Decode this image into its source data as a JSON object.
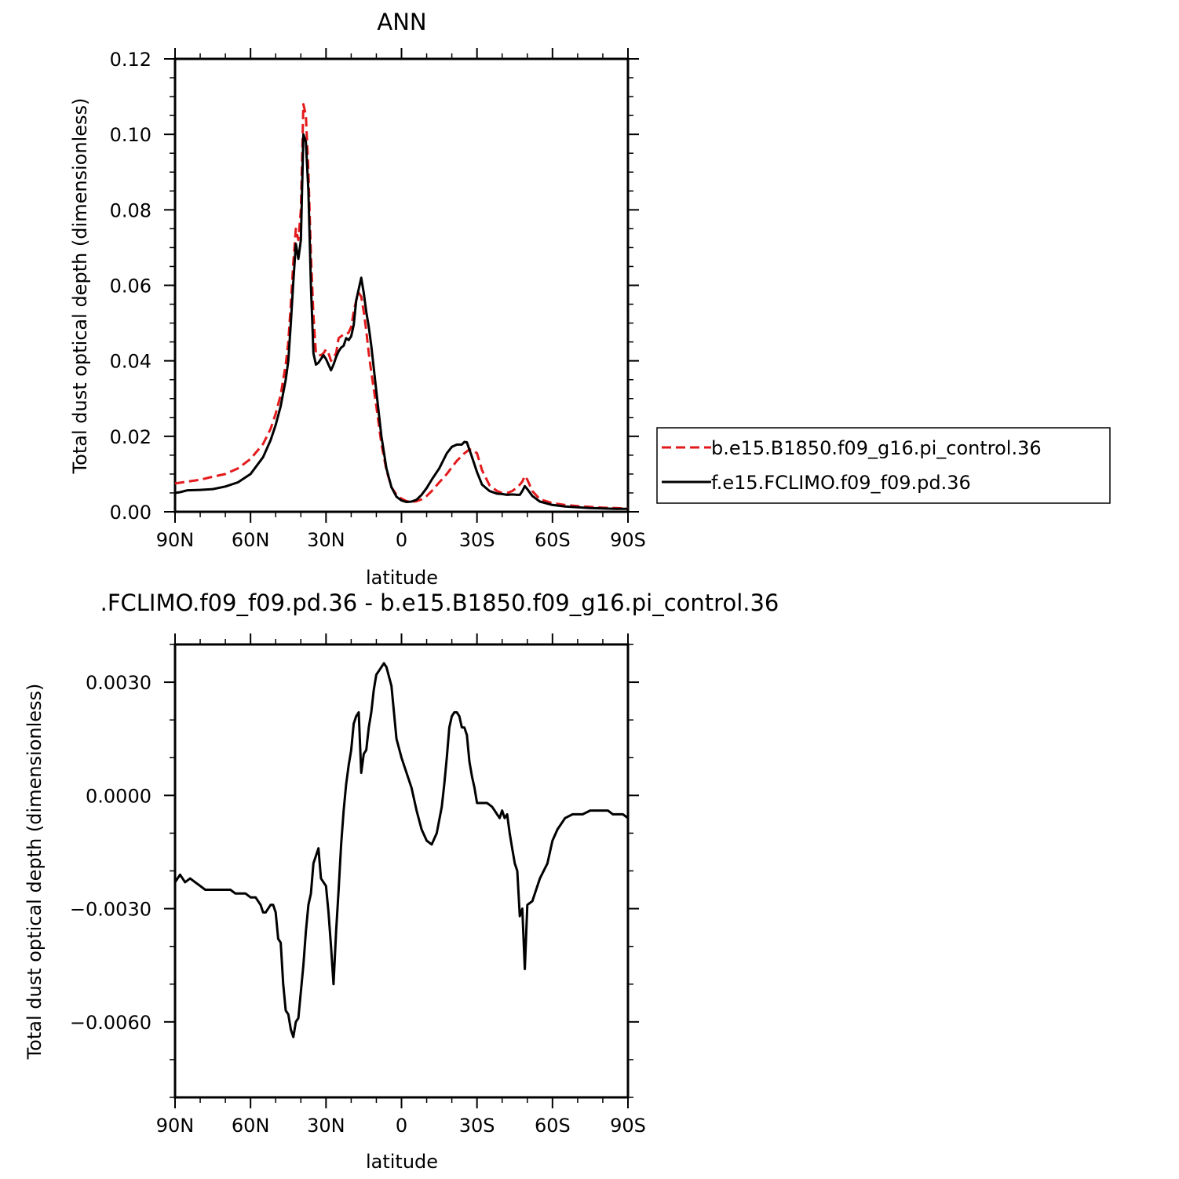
{
  "chart_data": [
    {
      "type": "line",
      "title": "ANN",
      "xlabel": "latitude",
      "ylabel": "Total dust optical depth (dimensionless)",
      "x_ticks": [
        "90N",
        "60N",
        "30N",
        "0",
        "30S",
        "60S",
        "90S"
      ],
      "x_tick_values": [
        90,
        60,
        30,
        0,
        -30,
        -60,
        -90
      ],
      "y_ticks": [
        "0.00",
        "0.02",
        "0.04",
        "0.06",
        "0.08",
        "0.10",
        "0.12"
      ],
      "xlim": [
        90,
        -90
      ],
      "ylim": [
        0,
        0.12
      ],
      "legend_position": "right",
      "series": [
        {
          "name": "b.e15.B1850.f09_g16.pi_control.36",
          "color": "#e31a1c",
          "dash": "dashed",
          "x": [
            90,
            85,
            80,
            75,
            70,
            65,
            60,
            55,
            52,
            50,
            48,
            46,
            45,
            44,
            43,
            42,
            41,
            40,
            39,
            38,
            37,
            36,
            35,
            34,
            33,
            32,
            31,
            30,
            29,
            28,
            27,
            26,
            25,
            24,
            23,
            22,
            21,
            20,
            19,
            18,
            17,
            16,
            15,
            14,
            13,
            12,
            10,
            8,
            6,
            4,
            2,
            0,
            -2,
            -4,
            -6,
            -8,
            -10,
            -12,
            -15,
            -18,
            -20,
            -22,
            -25,
            -27,
            -28,
            -30,
            -32,
            -35,
            -38,
            -40,
            -42,
            -44,
            -46,
            -47,
            -48,
            -49,
            -50,
            -52,
            -55,
            -60,
            -65,
            -70,
            -75,
            -80,
            -85,
            -90
          ],
          "y": [
            0.0075,
            0.008,
            0.0085,
            0.0093,
            0.01,
            0.0115,
            0.014,
            0.018,
            0.022,
            0.026,
            0.031,
            0.039,
            0.045,
            0.055,
            0.066,
            0.075,
            0.072,
            0.08,
            0.108,
            0.105,
            0.09,
            0.068,
            0.052,
            0.042,
            0.0415,
            0.0415,
            0.042,
            0.043,
            0.042,
            0.04,
            0.041,
            0.042,
            0.046,
            0.0465,
            0.047,
            0.047,
            0.0475,
            0.049,
            0.053,
            0.056,
            0.058,
            0.057,
            0.053,
            0.048,
            0.042,
            0.037,
            0.028,
            0.018,
            0.011,
            0.0065,
            0.0045,
            0.0035,
            0.0028,
            0.0026,
            0.0028,
            0.0033,
            0.0042,
            0.0055,
            0.0078,
            0.01,
            0.0118,
            0.0135,
            0.0155,
            0.0165,
            0.0165,
            0.0155,
            0.011,
            0.007,
            0.0055,
            0.005,
            0.005,
            0.0055,
            0.0065,
            0.0072,
            0.008,
            0.0095,
            0.0085,
            0.0055,
            0.0033,
            0.0023,
            0.0018,
            0.0015,
            0.0013,
            0.0011,
            0.001,
            0.0009
          ]
        },
        {
          "name": "f.e15.FCLIMO.f09_f09.pd.36",
          "color": "#000000",
          "dash": "solid",
          "x": [
            90,
            88,
            85,
            80,
            75,
            70,
            65,
            60,
            55,
            52,
            50,
            48,
            46,
            45,
            44,
            43,
            42,
            41,
            40,
            39,
            38,
            37,
            36,
            35,
            34,
            33,
            32,
            31,
            30,
            29,
            28,
            27,
            26,
            25,
            24,
            23,
            22,
            21,
            20,
            19,
            18,
            17,
            16,
            15,
            14,
            13,
            12,
            10,
            8,
            6,
            4,
            2,
            0,
            -2,
            -4,
            -6,
            -8,
            -10,
            -12,
            -15,
            -18,
            -20,
            -22,
            -24,
            -25,
            -26,
            -27,
            -28,
            -30,
            -32,
            -35,
            -38,
            -40,
            -42,
            -44,
            -46,
            -47,
            -48,
            -49,
            -50,
            -52,
            -55,
            -60,
            -65,
            -70,
            -75,
            -80,
            -85,
            -90
          ],
          "y": [
            0.005,
            0.0052,
            0.0057,
            0.0058,
            0.006,
            0.0067,
            0.0078,
            0.01,
            0.0145,
            0.019,
            0.023,
            0.028,
            0.035,
            0.04,
            0.05,
            0.061,
            0.071,
            0.067,
            0.072,
            0.1,
            0.098,
            0.085,
            0.06,
            0.042,
            0.039,
            0.0395,
            0.0405,
            0.0415,
            0.0405,
            0.039,
            0.0375,
            0.039,
            0.041,
            0.0425,
            0.0435,
            0.044,
            0.046,
            0.0455,
            0.0465,
            0.0495,
            0.056,
            0.059,
            0.062,
            0.058,
            0.053,
            0.049,
            0.044,
            0.032,
            0.02,
            0.0115,
            0.0065,
            0.004,
            0.003,
            0.0026,
            0.0027,
            0.0032,
            0.0045,
            0.0063,
            0.0085,
            0.0115,
            0.0155,
            0.0172,
            0.0178,
            0.0178,
            0.0185,
            0.0184,
            0.0165,
            0.0145,
            0.0105,
            0.0072,
            0.0055,
            0.0048,
            0.0047,
            0.0045,
            0.0046,
            0.0045,
            0.0045,
            0.0055,
            0.0068,
            0.006,
            0.0042,
            0.0027,
            0.0018,
            0.0014,
            0.0012,
            0.001,
            0.0009,
            0.0008,
            0.0008
          ]
        }
      ]
    },
    {
      "type": "line",
      "title": ".FCLIMO.f09_f09.pd.36 - b.e15.B1850.f09_g16.pi_control.36",
      "xlabel": "latitude",
      "ylabel": "Total dust optical depth (dimensionless)",
      "x_ticks": [
        "90N",
        "60N",
        "30N",
        "0",
        "30S",
        "60S",
        "90S"
      ],
      "x_tick_values": [
        90,
        60,
        30,
        0,
        -30,
        -60,
        -90
      ],
      "y_ticks": [
        "0.0030",
        "0.0000",
        "−0.0030",
        "−0.0060"
      ],
      "y_tick_values": [
        0.003,
        0.0,
        -0.003,
        -0.006
      ],
      "xlim": [
        90,
        -90
      ],
      "ylim": [
        -0.008,
        0.004
      ],
      "series": [
        {
          "name": "",
          "color": "#000000",
          "dash": "solid",
          "x": [
            90,
            88,
            86,
            84,
            82,
            80,
            78,
            76,
            74,
            72,
            70,
            68,
            66,
            64,
            62,
            60,
            58,
            56,
            55,
            54,
            53,
            52,
            51,
            50,
            49,
            48,
            47,
            46,
            45,
            44,
            43,
            42,
            41,
            40,
            39,
            38,
            37,
            36,
            35,
            34,
            33,
            32,
            31,
            30,
            29,
            28,
            27,
            26,
            25,
            24,
            23,
            22,
            21,
            20,
            19,
            18,
            17,
            16,
            15,
            14,
            13,
            12,
            11,
            10,
            9,
            8,
            7,
            6,
            4,
            2,
            0,
            -2,
            -4,
            -6,
            -8,
            -10,
            -12,
            -14,
            -16,
            -17,
            -18,
            -19,
            -20,
            -21,
            -22,
            -23,
            -24,
            -25,
            -26,
            -27,
            -28,
            -29,
            -30,
            -32,
            -34,
            -36,
            -37,
            -38,
            -39,
            -40,
            -41,
            -42,
            -43,
            -44,
            -45,
            -46,
            -47,
            -48,
            -49,
            -50,
            -52,
            -55,
            -58,
            -60,
            -62,
            -65,
            -68,
            -70,
            -72,
            -75,
            -78,
            -80,
            -82,
            -84,
            -86,
            -88,
            -90
          ],
          "y": [
            -0.0023,
            -0.0021,
            -0.0023,
            -0.0022,
            -0.0023,
            -0.0024,
            -0.0025,
            -0.0025,
            -0.0025,
            -0.0025,
            -0.0025,
            -0.0025,
            -0.0026,
            -0.0026,
            -0.0026,
            -0.0027,
            -0.0027,
            -0.0029,
            -0.0031,
            -0.0031,
            -0.003,
            -0.0029,
            -0.0029,
            -0.0031,
            -0.0038,
            -0.0039,
            -0.005,
            -0.0057,
            -0.0058,
            -0.0062,
            -0.0064,
            -0.006,
            -0.0059,
            -0.0052,
            -0.0045,
            -0.0036,
            -0.0029,
            -0.0026,
            -0.0018,
            -0.0016,
            -0.0014,
            -0.0022,
            -0.0023,
            -0.0024,
            -0.0031,
            -0.004,
            -0.005,
            -0.0036,
            -0.0025,
            -0.0013,
            -0.0004,
            0.0003,
            0.0008,
            0.0012,
            0.0019,
            0.0021,
            0.0022,
            0.0006,
            0.0011,
            0.0012,
            0.0018,
            0.0022,
            0.0028,
            0.0032,
            0.0033,
            0.0034,
            0.0035,
            0.0034,
            0.0029,
            0.0015,
            0.001,
            0.0006,
            0.0002,
            -0.0004,
            -0.0009,
            -0.0012,
            -0.0013,
            -0.001,
            -0.0003,
            0.0003,
            0.001,
            0.0018,
            0.0021,
            0.0022,
            0.0022,
            0.0021,
            0.0018,
            0.0018,
            0.0016,
            0.0009,
            0.0005,
            0.0002,
            -0.0002,
            -0.0002,
            -0.0002,
            -0.0003,
            -0.0004,
            -0.0005,
            -0.0006,
            -0.0004,
            -0.0006,
            -0.0005,
            -0.001,
            -0.0014,
            -0.0018,
            -0.002,
            -0.0032,
            -0.003,
            -0.0046,
            -0.0029,
            -0.0028,
            -0.0022,
            -0.0018,
            -0.0012,
            -0.0009,
            -0.0006,
            -0.0005,
            -0.0005,
            -0.0005,
            -0.0004,
            -0.0004,
            -0.0004,
            -0.0004,
            -0.0005,
            -0.0005,
            -0.0005,
            -0.0006
          ]
        }
      ]
    }
  ]
}
